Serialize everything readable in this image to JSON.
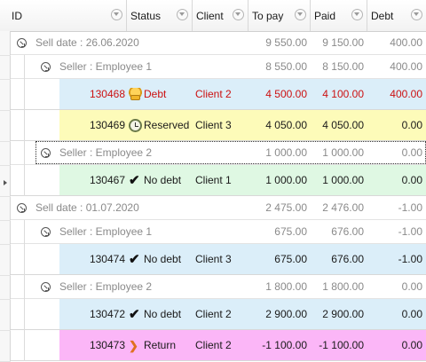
{
  "columns": {
    "id": "ID",
    "status": "Status",
    "client": "Client",
    "to_pay": "To pay",
    "paid": "Paid",
    "debt": "Debt"
  },
  "groups": [
    {
      "label": "Sell date : 26.06.2020",
      "to_pay": "9 550.00",
      "paid": "9 150.00",
      "debt": "400.00",
      "sub": [
        {
          "label": "Seller : Employee 1",
          "to_pay": "8 550.00",
          "paid": "8 150.00",
          "debt": "400.00",
          "rows": [
            {
              "id": "130468",
              "status": "Debt",
              "icon": "coins-icon",
              "client": "Client 2",
              "to_pay": "4 500.00",
              "paid": "4 100.00",
              "debt": "400.00",
              "bg": "#dbeef9",
              "color": "#cc1111"
            },
            {
              "id": "130469",
              "status": "Reserved",
              "icon": "clock-icon",
              "client": "Client 3",
              "to_pay": "4 050.00",
              "paid": "4 050.00",
              "debt": "0.00",
              "bg": "#fdfbb9",
              "color": "#1a1a1a"
            }
          ]
        },
        {
          "label": "Seller : Employee 2",
          "to_pay": "1 000.00",
          "paid": "1 000.00",
          "debt": "0.00",
          "rows": [
            {
              "id": "130467",
              "status": "No debt",
              "icon": "checkmark-icon",
              "client": "Client 1",
              "to_pay": "1 000.00",
              "paid": "1 000.00",
              "debt": "0.00",
              "bg": "#dff8e3",
              "color": "#1a1a1a"
            }
          ]
        }
      ]
    },
    {
      "label": "Sell date : 01.07.2020",
      "to_pay": "2 475.00",
      "paid": "2 476.00",
      "debt": "-1.00",
      "sub": [
        {
          "label": "Seller : Employee 1",
          "to_pay": "675.00",
          "paid": "676.00",
          "debt": "-1.00",
          "rows": [
            {
              "id": "130474",
              "status": "No debt",
              "icon": "checkmark-icon",
              "client": "Client 3",
              "to_pay": "675.00",
              "paid": "676.00",
              "debt": "-1.00",
              "bg": "#dbeef9",
              "color": "#1a1a1a"
            }
          ]
        },
        {
          "label": "Seller : Employee 2",
          "to_pay": "1 800.00",
          "paid": "1 800.00",
          "debt": "0.00",
          "rows": [
            {
              "id": "130472",
              "status": "No debt",
              "icon": "checkmark-icon",
              "client": "Client 2",
              "to_pay": "2 900.00",
              "paid": "2 900.00",
              "debt": "0.00",
              "bg": "#dbeef9",
              "color": "#1a1a1a"
            },
            {
              "id": "130473",
              "status": "Return",
              "icon": "return-arrow-icon",
              "client": "Client 2",
              "to_pay": "-1 100.00",
              "paid": "-1 100.00",
              "debt": "0.00",
              "bg": "#fbb6f7",
              "color": "#1a1a1a"
            }
          ]
        }
      ]
    }
  ]
}
